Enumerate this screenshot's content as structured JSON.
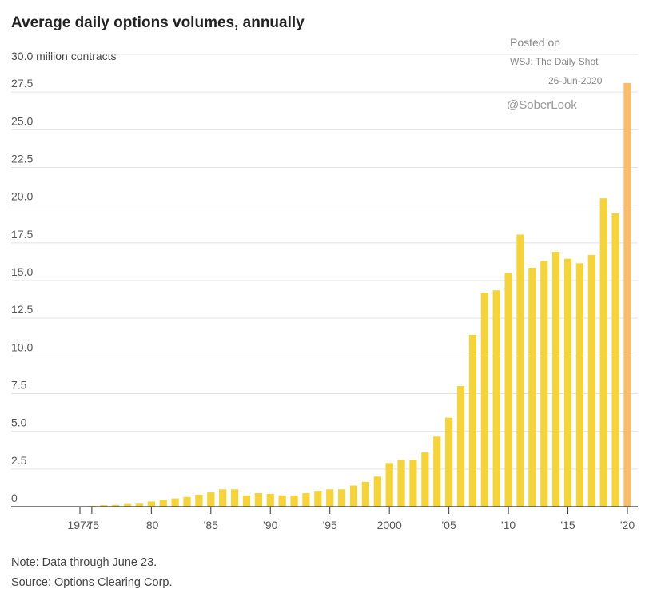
{
  "chart_data": {
    "type": "bar",
    "title": "Average daily options volumes, annually",
    "unit_label": "30.0 million contracts",
    "ylim": [
      0,
      30
    ],
    "yticks": [
      "27.5",
      "25.0",
      "22.5",
      "20.0",
      "17.5",
      "15.0",
      "12.5",
      "10.0",
      "7.5",
      "5.0",
      "2.5",
      "0"
    ],
    "ytick_values": [
      27.5,
      25,
      22.5,
      20,
      17.5,
      15,
      12.5,
      10,
      7.5,
      5,
      2.5,
      0
    ],
    "xtick_labels": [
      {
        "year": 1974,
        "label": "1974"
      },
      {
        "year": 1975,
        "label": "'75"
      },
      {
        "year": 1980,
        "label": "'80"
      },
      {
        "year": 1985,
        "label": "'85"
      },
      {
        "year": 1990,
        "label": "'90"
      },
      {
        "year": 1995,
        "label": "'95"
      },
      {
        "year": 2000,
        "label": "2000"
      },
      {
        "year": 2005,
        "label": "'05"
      },
      {
        "year": 2010,
        "label": "'10"
      },
      {
        "year": 2015,
        "label": "'15"
      },
      {
        "year": 2020,
        "label": "'20"
      }
    ],
    "x": [
      1974,
      1975,
      1976,
      1977,
      1978,
      1979,
      1980,
      1981,
      1982,
      1983,
      1984,
      1985,
      1986,
      1987,
      1988,
      1989,
      1990,
      1991,
      1992,
      1993,
      1994,
      1995,
      1996,
      1997,
      1998,
      1999,
      2000,
      2001,
      2002,
      2003,
      2004,
      2005,
      2006,
      2007,
      2008,
      2009,
      2010,
      2011,
      2012,
      2013,
      2014,
      2015,
      2016,
      2017,
      2018,
      2019,
      2020
    ],
    "values": [
      0.02,
      0.05,
      0.1,
      0.12,
      0.18,
      0.2,
      0.35,
      0.45,
      0.55,
      0.65,
      0.8,
      0.95,
      1.15,
      1.15,
      0.75,
      0.9,
      0.85,
      0.75,
      0.75,
      0.9,
      1.05,
      1.15,
      1.15,
      1.4,
      1.65,
      2.0,
      2.9,
      3.1,
      3.1,
      3.6,
      4.65,
      5.9,
      8.0,
      11.4,
      14.2,
      14.35,
      15.5,
      18.05,
      15.85,
      16.3,
      16.9,
      16.45,
      16.15,
      16.7,
      20.45,
      19.45,
      28.1
    ],
    "highlight_last": true,
    "colors": {
      "bar": "#f5d33a",
      "highlight": "#f7bd6b",
      "grid": "#e3e3e3",
      "axis": "#333333"
    },
    "grid": true
  },
  "watermark": {
    "posted_on": "Posted on",
    "source": "WSJ: The Daily Shot",
    "date": "26-Jun-2020",
    "handle": "@SoberLook"
  },
  "notes": {
    "note": "Note: Data through June 23.",
    "source": "Source: Options Clearing Corp."
  }
}
